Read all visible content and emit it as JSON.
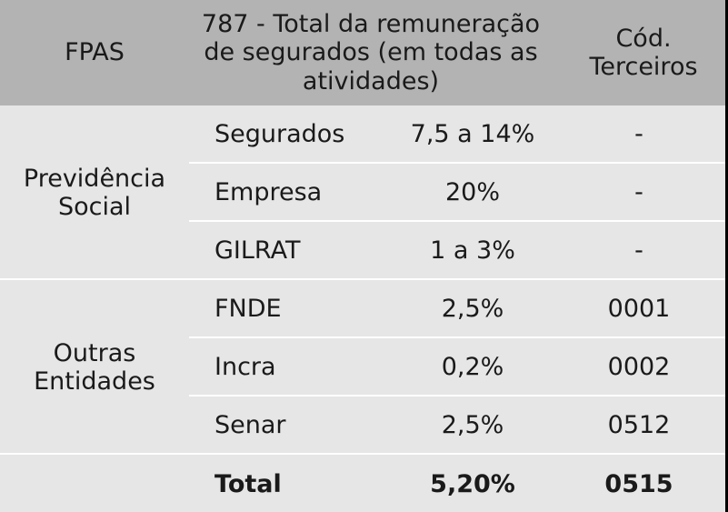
{
  "header": {
    "col1": "FPAS",
    "col2": "787 - Total da remuneração de segurados (em todas as atividades)",
    "col3": "Cód. Terceiros"
  },
  "groups": [
    {
      "label": "Previdência Social",
      "rows": [
        {
          "name": "Segurados",
          "rate": "7,5 a 14%",
          "code": "-"
        },
        {
          "name": "Empresa",
          "rate": "20%",
          "code": "-"
        },
        {
          "name": "GILRAT",
          "rate": "1 a 3%",
          "code": "-"
        }
      ]
    },
    {
      "label": "Outras Entidades",
      "rows": [
        {
          "name": "FNDE",
          "rate": "2,5%",
          "code": "0001"
        },
        {
          "name": "Incra",
          "rate": "0,2%",
          "code": "0002"
        },
        {
          "name": "Senar",
          "rate": "2,5%",
          "code": "0512"
        }
      ]
    }
  ],
  "total": {
    "name": "Total",
    "rate": "5,20%",
    "code": "0515"
  },
  "colors": {
    "header_bg": "#b3b3b3",
    "body_bg": "#e6e6e6",
    "divider": "#ffffff"
  }
}
